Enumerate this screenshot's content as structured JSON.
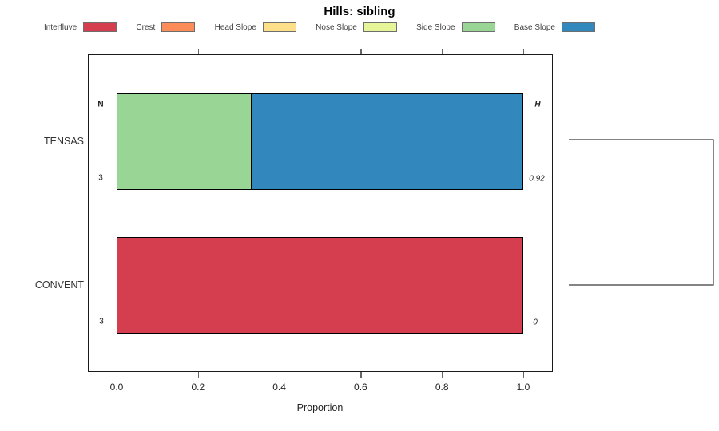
{
  "title": "Hills: sibling",
  "chart_data": {
    "type": "bar",
    "orientation": "horizontal",
    "stacked": true,
    "title": "Hills: sibling",
    "xlabel": "Proportion",
    "ylabel": "",
    "xlim": [
      0,
      1
    ],
    "xticks": [
      "0.0",
      "0.2",
      "0.4",
      "0.6",
      "0.8",
      "1.0"
    ],
    "grid": false,
    "legend_position": "top",
    "categories": [
      "TENSAS",
      "CONVENT"
    ],
    "series": [
      {
        "name": "Interfluve",
        "color": "#D53E4F",
        "values": [
          0,
          1.0
        ]
      },
      {
        "name": "Crest",
        "color": "#FC8D59",
        "values": [
          0,
          0
        ]
      },
      {
        "name": "Head Slope",
        "color": "#FEE08B",
        "values": [
          0,
          0
        ]
      },
      {
        "name": "Nose Slope",
        "color": "#E6F598",
        "values": [
          0,
          0
        ]
      },
      {
        "name": "Side Slope",
        "color": "#99D594",
        "values": [
          0.333,
          0
        ]
      },
      {
        "name": "Base Slope",
        "color": "#3288BD",
        "values": [
          0.667,
          0
        ]
      }
    ],
    "annotations": {
      "n_header": "N",
      "h_header": "H",
      "rows": [
        {
          "category": "TENSAS",
          "n": "3",
          "h": "0.92"
        },
        {
          "category": "CONVENT",
          "n": "3",
          "h": "0"
        }
      ]
    },
    "dendrogram": {
      "note": "right-side bracket joining TENSAS and CONVENT clusters"
    }
  }
}
